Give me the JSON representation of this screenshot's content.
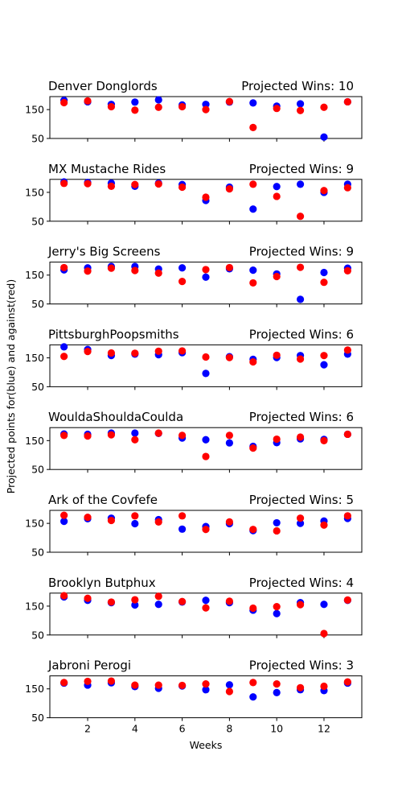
{
  "colors": {
    "for": "#0000ff",
    "against": "#ff0000"
  },
  "figure": {
    "xlabel": "Weeks",
    "ylabel": "Projected points for(blue) and against(red)"
  },
  "chart_data": [
    {
      "type": "scatter",
      "title_left": "Denver Donglords",
      "title_right": "Projected Wins: 10",
      "x": [
        1,
        2,
        3,
        4,
        5,
        6,
        7,
        8,
        9,
        10,
        11,
        12,
        13
      ],
      "series": [
        {
          "values": [
            182,
            177,
            168,
            176,
            184,
            166,
            168,
            176,
            173,
            162,
            170,
            55,
            177
          ]
        },
        {
          "values": [
            174,
            180,
            160,
            148,
            158,
            160,
            150,
            178,
            88,
            154,
            147,
            158,
            177
          ]
        }
      ],
      "xticks": [
        2,
        4,
        6,
        8,
        10,
        12
      ],
      "yticks": [
        50,
        150
      ],
      "ylim": [
        50,
        195
      ]
    },
    {
      "type": "scatter",
      "title_left": "MX Mustache Rides",
      "title_right": "Projected Wins: 9",
      "x": [
        1,
        2,
        3,
        4,
        5,
        6,
        7,
        8,
        9,
        10,
        11,
        12,
        13
      ],
      "series": [
        {
          "values": [
            186,
            184,
            182,
            171,
            182,
            177,
            122,
            168,
            92,
            170,
            178,
            150,
            178
          ]
        },
        {
          "values": [
            181,
            180,
            171,
            177,
            179,
            168,
            133,
            162,
            178,
            136,
            67,
            156,
            166
          ]
        }
      ],
      "xticks": [
        2,
        4,
        6,
        8,
        10,
        12
      ],
      "yticks": [
        50,
        150
      ],
      "ylim": [
        50,
        195
      ]
    },
    {
      "type": "scatter",
      "title_left": "Jerry's Big Screens",
      "title_right": "Projected Wins: 9",
      "x": [
        1,
        2,
        3,
        4,
        5,
        6,
        7,
        8,
        9,
        10,
        11,
        12,
        13
      ],
      "series": [
        {
          "values": [
            168,
            175,
            180,
            180,
            171,
            175,
            143,
            172,
            167,
            154,
            66,
            159,
            174
          ]
        },
        {
          "values": [
            176,
            164,
            174,
            166,
            157,
            128,
            169,
            176,
            123,
            145,
            177,
            125,
            165
          ]
        }
      ],
      "xticks": [
        2,
        4,
        6,
        8,
        10,
        12
      ],
      "yticks": [
        50,
        150
      ],
      "ylim": [
        50,
        195
      ]
    },
    {
      "type": "scatter",
      "title_left": "PittsburghPoopsmiths",
      "title_right": "Projected Wins: 6",
      "x": [
        1,
        2,
        3,
        4,
        5,
        6,
        7,
        8,
        9,
        10,
        11,
        12,
        13
      ],
      "series": [
        {
          "values": [
            188,
            179,
            158,
            163,
            161,
            168,
            96,
            154,
            145,
            151,
            158,
            126,
            163
          ]
        },
        {
          "values": [
            155,
            172,
            167,
            166,
            173,
            174,
            153,
            151,
            136,
            159,
            146,
            158,
            177
          ]
        }
      ],
      "xticks": [
        2,
        4,
        6,
        8,
        10,
        12
      ],
      "yticks": [
        50,
        150
      ],
      "ylim": [
        50,
        195
      ]
    },
    {
      "type": "scatter",
      "title_left": "WouldaShouldaCoulda",
      "title_right": "Projected Wins: 6",
      "x": [
        1,
        2,
        3,
        4,
        5,
        6,
        7,
        8,
        9,
        10,
        11,
        12,
        13
      ],
      "series": [
        {
          "values": [
            173,
            172,
            176,
            176,
            175,
            159,
            153,
            142,
            130,
            143,
            156,
            154,
            172
          ]
        },
        {
          "values": [
            168,
            166,
            170,
            153,
            176,
            168,
            95,
            168,
            124,
            155,
            162,
            150,
            172
          ]
        }
      ],
      "xticks": [
        2,
        4,
        6,
        8,
        10,
        12
      ],
      "yticks": [
        50,
        150
      ],
      "ylim": [
        50,
        195
      ]
    },
    {
      "type": "scatter",
      "title_left": "Ark of the Covfefe",
      "title_right": "Projected Wins: 5",
      "x": [
        1,
        2,
        3,
        4,
        5,
        6,
        7,
        8,
        9,
        10,
        11,
        12,
        13
      ],
      "series": [
        {
          "values": [
            157,
            166,
            168,
            149,
            163,
            130,
            139,
            149,
            125,
            152,
            150,
            158,
            167
          ]
        },
        {
          "values": [
            178,
            171,
            160,
            176,
            155,
            176,
            129,
            155,
            129,
            124,
            168,
            144,
            176
          ]
        }
      ],
      "xticks": [
        2,
        4,
        6,
        8,
        10,
        12
      ],
      "yticks": [
        50,
        150
      ],
      "ylim": [
        50,
        195
      ]
    },
    {
      "type": "scatter",
      "title_left": "Brooklyn Butphux",
      "title_right": "Projected Wins: 4",
      "x": [
        1,
        2,
        3,
        4,
        5,
        6,
        7,
        8,
        9,
        10,
        11,
        12,
        13
      ],
      "series": [
        {
          "values": [
            182,
            170,
            162,
            154,
            156,
            164,
            170,
            162,
            136,
            124,
            162,
            156,
            170
          ]
        },
        {
          "values": [
            186,
            177,
            164,
            172,
            184,
            166,
            144,
            167,
            143,
            148,
            155,
            55,
            171
          ]
        }
      ],
      "xticks": [
        2,
        4,
        6,
        8,
        10,
        12
      ],
      "yticks": [
        50,
        150
      ],
      "ylim": [
        50,
        195
      ]
    },
    {
      "type": "scatter",
      "title_left": "Jabroni Perogi",
      "title_right": "Projected Wins: 3",
      "x": [
        1,
        2,
        3,
        4,
        5,
        6,
        7,
        8,
        9,
        10,
        11,
        12,
        13
      ],
      "series": [
        {
          "values": [
            170,
            163,
            171,
            158,
            152,
            160,
            147,
            164,
            122,
            137,
            147,
            144,
            170
          ]
        },
        {
          "values": [
            172,
            176,
            177,
            163,
            163,
            162,
            167,
            141,
            172,
            167,
            154,
            159,
            174
          ]
        }
      ],
      "xticks": [
        2,
        4,
        6,
        8,
        10,
        12
      ],
      "yticks": [
        50,
        150
      ],
      "ylim": [
        50,
        195
      ]
    }
  ]
}
